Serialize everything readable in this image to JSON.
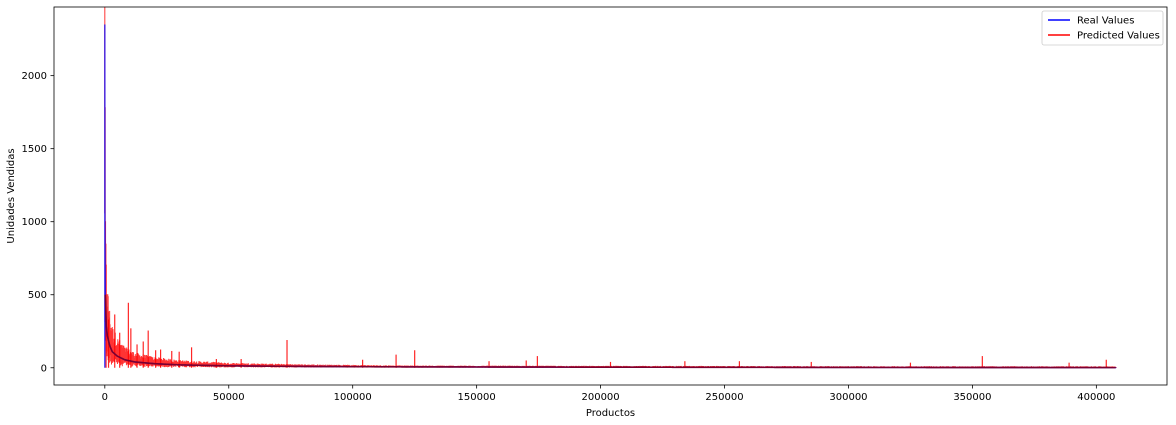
{
  "chart_data": {
    "type": "line",
    "title": "",
    "xlabel": "Productos",
    "ylabel": "Unidades Vendidas",
    "xlim": [
      -20500,
      428500
    ],
    "ylim": [
      -118,
      2470
    ],
    "xticks": [
      0,
      50000,
      100000,
      150000,
      200000,
      250000,
      300000,
      350000,
      400000
    ],
    "xtick_labels": [
      "0",
      "50000",
      "100000",
      "150000",
      "200000",
      "250000",
      "300000",
      "350000",
      "400000"
    ],
    "yticks": [
      0,
      500,
      1000,
      1500,
      2000
    ],
    "ytick_labels": [
      "0",
      "500",
      "1000",
      "1500",
      "2000"
    ],
    "grid": false,
    "legend_position": "top-right",
    "n_points_approx": 408000,
    "series": [
      {
        "name": "Real Values",
        "color": "#0000ff",
        "description": "sorted descending sales; spike to ~2350 at x≈0 then rapidly decaying curve",
        "x": [
          0,
          50,
          200,
          500,
          1000,
          2000,
          3000,
          5000,
          8000,
          12000,
          20000,
          30000,
          50000,
          80000,
          120000,
          200000,
          300000,
          408000
        ],
        "y": [
          2350,
          1000,
          500,
          300,
          220,
          150,
          110,
          80,
          55,
          40,
          28,
          20,
          13,
          9,
          6,
          4,
          2,
          1
        ]
      },
      {
        "name": "Predicted Values",
        "color": "#ff0000",
        "description": "noisy predictions around the real curve, with occasional spikes",
        "spikes": [
          {
            "x": 500,
            "y": 350
          },
          {
            "x": 1500,
            "y": 330
          },
          {
            "x": 4000,
            "y": 365
          },
          {
            "x": 6000,
            "y": 240
          },
          {
            "x": 9500,
            "y": 445
          },
          {
            "x": 10500,
            "y": 270
          },
          {
            "x": 13000,
            "y": 160
          },
          {
            "x": 15500,
            "y": 180
          },
          {
            "x": 17500,
            "y": 255
          },
          {
            "x": 20500,
            "y": 120
          },
          {
            "x": 22500,
            "y": 125
          },
          {
            "x": 27000,
            "y": 115
          },
          {
            "x": 30000,
            "y": 110
          },
          {
            "x": 35000,
            "y": 140
          },
          {
            "x": 45000,
            "y": 60
          },
          {
            "x": 55000,
            "y": 60
          },
          {
            "x": 73500,
            "y": 190
          },
          {
            "x": 104000,
            "y": 55
          },
          {
            "x": 117500,
            "y": 90
          },
          {
            "x": 125000,
            "y": 120
          },
          {
            "x": 155000,
            "y": 45
          },
          {
            "x": 170000,
            "y": 50
          },
          {
            "x": 174500,
            "y": 80
          },
          {
            "x": 204000,
            "y": 40
          },
          {
            "x": 234000,
            "y": 45
          },
          {
            "x": 256000,
            "y": 45
          },
          {
            "x": 285000,
            "y": 40
          },
          {
            "x": 325000,
            "y": 35
          },
          {
            "x": 354000,
            "y": 80
          },
          {
            "x": 389000,
            "y": 35
          },
          {
            "x": 404000,
            "y": 55
          }
        ]
      }
    ]
  }
}
